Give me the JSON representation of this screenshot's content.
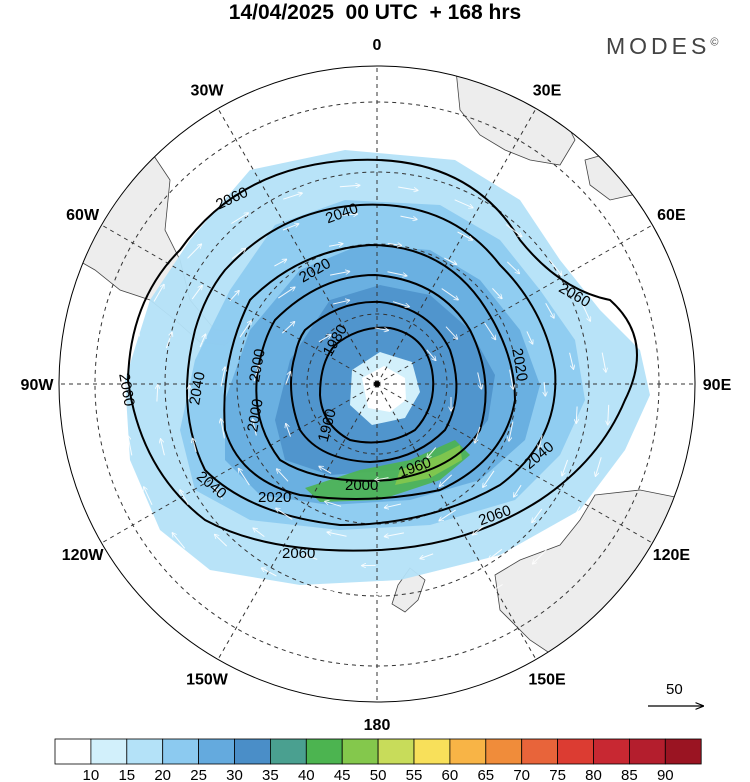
{
  "title": "14/04/2025  00 UTC  + 168 hrs",
  "brand": "MODES",
  "brand_mark": "©",
  "longitude_labels": [
    {
      "lon": 0,
      "text": "0"
    },
    {
      "lon": 30,
      "text": "30E"
    },
    {
      "lon": 60,
      "text": "60E"
    },
    {
      "lon": 90,
      "text": "90E"
    },
    {
      "lon": 120,
      "text": "120E"
    },
    {
      "lon": 150,
      "text": "150E"
    },
    {
      "lon": 180,
      "text": "180"
    },
    {
      "lon": -150,
      "text": "150W"
    },
    {
      "lon": -120,
      "text": "120W"
    },
    {
      "lon": -90,
      "text": "90W"
    },
    {
      "lon": -60,
      "text": "60W"
    },
    {
      "lon": -30,
      "text": "30W"
    }
  ],
  "projection": "south-polar-stereographic",
  "field": {
    "contour_variable": "geopotential height",
    "contour_levels": [
      1960,
      1980,
      2000,
      2020,
      2040,
      2060
    ],
    "contour_labels": [
      "2060",
      "2040",
      "2020",
      "1980",
      "1960",
      "2000",
      "2020",
      "2040",
      "2060",
      "2060",
      "2060",
      "2040",
      "2000",
      "1960",
      "2000",
      "2020",
      "2040",
      "2060",
      "1980"
    ],
    "shading": "wind speed",
    "flow": "clockwise"
  },
  "vector_reference": {
    "value": "50"
  },
  "colorbar": {
    "labels": [
      "10",
      "15",
      "20",
      "25",
      "30",
      "35",
      "40",
      "45",
      "50",
      "55",
      "60",
      "65",
      "70",
      "75",
      "80",
      "85",
      "90"
    ],
    "colors": [
      "#ffffff",
      "#d2f0fb",
      "#b4e2f8",
      "#8ccaf0",
      "#64aade",
      "#4a8ec8",
      "#4aa090",
      "#4cb450",
      "#84c84c",
      "#c8dc5a",
      "#f8e05a",
      "#f8b446",
      "#f08c3a",
      "#e8643a",
      "#dc3c32",
      "#c82832",
      "#b41e2d",
      "#9a1422"
    ]
  }
}
